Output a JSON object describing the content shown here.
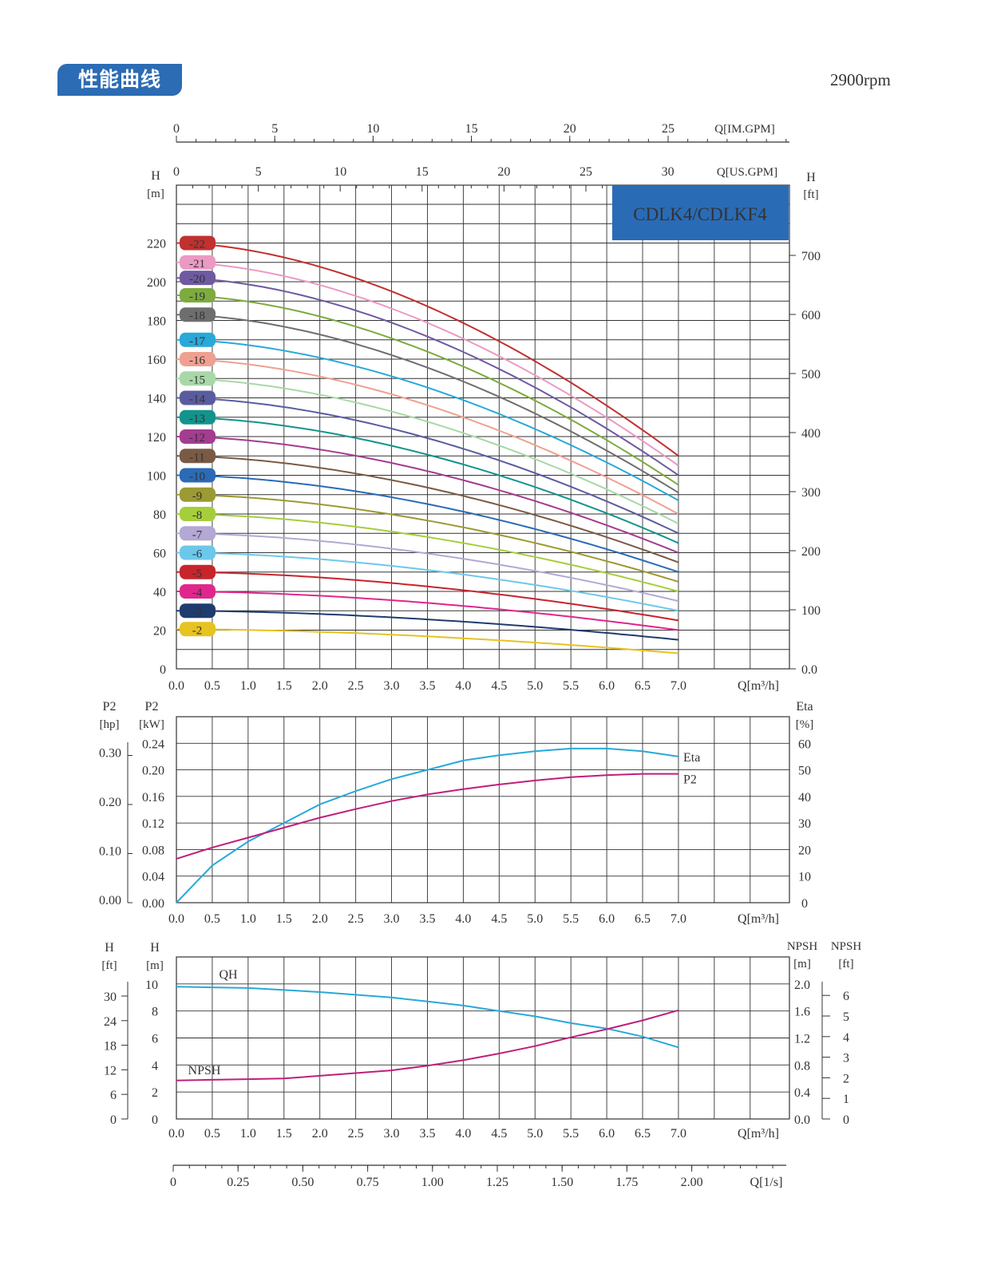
{
  "header": {
    "title": "性能曲线",
    "rpm": "2900rpm"
  },
  "model_box": {
    "label": "CDLK4/CDLKF4",
    "color": "#2a6bb6"
  },
  "colors": {
    "22": "#c23030",
    "21": "#eb9ac3",
    "20": "#6e5aa0",
    "19": "#7dab3e",
    "18": "#6e6e6e",
    "17": "#28a9d9",
    "16": "#f0a090",
    "15": "#a8d8a8",
    "14": "#5a5ca0",
    "13": "#12948c",
    "12": "#a43c90",
    "11": "#7a5a44",
    "10": "#2a6bb6",
    "9": "#9c9a32",
    "8": "#a6ce3a",
    "7": "#b4a8d4",
    "6": "#6cc8ea",
    "5": "#c8242c",
    "4": "#e0268c",
    "3": "#1e3c6e",
    "2": "#e6c320",
    "eta": "#28a9d9",
    "p2": "#c01f7a",
    "qh": "#28a9d9",
    "npsh": "#c01f7a"
  },
  "chart_data": [
    {
      "type": "line",
      "name": "QH curves",
      "top_axis_imgpm": {
        "label": "Q[IM.GPM]",
        "ticks": [
          "0",
          "5",
          "10",
          "15",
          "20",
          "25"
        ]
      },
      "top_axis_usgpm": {
        "label": "Q[US.GPM]",
        "ticks": [
          "0",
          "5",
          "10",
          "15",
          "20",
          "25",
          "30"
        ]
      },
      "left_axis": {
        "label_top": "H",
        "label_unit": "[m]",
        "ticks": [
          "0",
          "20",
          "40",
          "60",
          "80",
          "100",
          "120",
          "140",
          "160",
          "180",
          "200",
          "220"
        ],
        "range": [
          0,
          240
        ]
      },
      "right_axis": {
        "label_top": "H",
        "label_unit": "[ft]",
        "ticks": [
          "0.0",
          "100",
          "200",
          "300",
          "400",
          "500",
          "600",
          "700"
        ]
      },
      "x_axis": {
        "label": "Q[m³/h]",
        "ticks": [
          "0.0",
          "0.5",
          "1.0",
          "1.5",
          "2.0",
          "2.5",
          "3.0",
          "3.5",
          "4.0",
          "4.5",
          "5.0",
          "5.5",
          "6.0",
          "6.5",
          "7.0"
        ],
        "range": [
          0,
          8.5
        ]
      },
      "series": [
        {
          "name": "-22",
          "key": "22",
          "h0": 220,
          "h7": 110
        },
        {
          "name": "-21",
          "key": "21",
          "h0": 210,
          "h7": 105
        },
        {
          "name": "-20",
          "key": "20",
          "h0": 202,
          "h7": 100
        },
        {
          "name": "-19",
          "key": "19",
          "h0": 193,
          "h7": 95
        },
        {
          "name": "-18",
          "key": "18",
          "h0": 183,
          "h7": 91
        },
        {
          "name": "-17",
          "key": "17",
          "h0": 170,
          "h7": 87
        },
        {
          "name": "-16",
          "key": "16",
          "h0": 160,
          "h7": 80
        },
        {
          "name": "-15",
          "key": "15",
          "h0": 150,
          "h7": 75
        },
        {
          "name": "-14",
          "key": "14",
          "h0": 140,
          "h7": 70
        },
        {
          "name": "-13",
          "key": "13",
          "h0": 130,
          "h7": 65
        },
        {
          "name": "-12",
          "key": "12",
          "h0": 120,
          "h7": 60
        },
        {
          "name": "-11",
          "key": "11",
          "h0": 110,
          "h7": 55
        },
        {
          "name": "-10",
          "key": "10",
          "h0": 100,
          "h7": 50
        },
        {
          "name": "-9",
          "key": "9",
          "h0": 90,
          "h7": 45
        },
        {
          "name": "-8",
          "key": "8",
          "h0": 80,
          "h7": 40
        },
        {
          "name": "-7",
          "key": "7",
          "h0": 70,
          "h7": 35
        },
        {
          "name": "-6",
          "key": "6",
          "h0": 60,
          "h7": 30
        },
        {
          "name": "-5",
          "key": "5",
          "h0": 50,
          "h7": 25
        },
        {
          "name": "-4",
          "key": "4",
          "h0": 40,
          "h7": 20
        },
        {
          "name": "-3",
          "key": "3",
          "h0": 30,
          "h7": 15
        },
        {
          "name": "-2",
          "key": "2",
          "h0": 20.5,
          "h7": 8
        }
      ]
    },
    {
      "type": "line",
      "name": "P2 / Eta",
      "left_axis_hp": {
        "label_top": "P2",
        "label_unit": "[hp]",
        "ticks": [
          "0.00",
          "0.10",
          "0.20",
          "0.30"
        ]
      },
      "left_axis_kw": {
        "label_top": "P2",
        "label_unit": "[kW]",
        "ticks": [
          "0.00",
          "0.04",
          "0.08",
          "0.12",
          "0.16",
          "0.20",
          "0.24"
        ],
        "range": [
          0,
          0.28
        ]
      },
      "right_axis": {
        "label_top": "Eta",
        "label_unit": "[%]",
        "ticks": [
          "0",
          "10",
          "20",
          "30",
          "40",
          "50",
          "60"
        ],
        "range": [
          0,
          70
        ]
      },
      "x_axis": {
        "label": "Q[m³/h]",
        "ticks": [
          "0.0",
          "0.5",
          "1.0",
          "1.5",
          "2.0",
          "2.5",
          "3.0",
          "3.5",
          "4.0",
          "4.5",
          "5.0",
          "5.5",
          "6.0",
          "6.5",
          "7.0"
        ]
      },
      "series": [
        {
          "name": "Eta",
          "key": "eta",
          "axis": "right",
          "x": [
            0,
            0.5,
            1.0,
            1.5,
            2.0,
            2.5,
            3.0,
            3.5,
            4.0,
            4.5,
            5.0,
            5.5,
            6.0,
            6.5,
            7.0
          ],
          "y": [
            0,
            14,
            23,
            30,
            37,
            42,
            46.5,
            50,
            53.5,
            55.5,
            57,
            58,
            58,
            57,
            55
          ]
        },
        {
          "name": "P2",
          "key": "p2",
          "axis": "left",
          "x": [
            0,
            0.5,
            1.0,
            1.5,
            2.0,
            2.5,
            3.0,
            3.5,
            4.0,
            4.5,
            5.0,
            5.5,
            6.0,
            6.5,
            7.0
          ],
          "y": [
            0.066,
            0.083,
            0.098,
            0.113,
            0.128,
            0.141,
            0.153,
            0.163,
            0.171,
            0.178,
            0.184,
            0.189,
            0.192,
            0.194,
            0.194
          ]
        }
      ]
    },
    {
      "type": "line",
      "name": "QH / NPSH",
      "left_axis_ft": {
        "label_top": "H",
        "label_unit": "[ft]",
        "ticks": [
          "0",
          "6",
          "12",
          "18",
          "24",
          "30"
        ]
      },
      "left_axis_m": {
        "label_top": "H",
        "label_unit": "[m]",
        "ticks": [
          "0",
          "2",
          "4",
          "6",
          "8",
          "10"
        ],
        "range": [
          0,
          12
        ]
      },
      "right_axis_m": {
        "label_top": "NPSH",
        "label_unit": "[m]",
        "ticks": [
          "0.0",
          "0.4",
          "0.8",
          "1.2",
          "1.6",
          "2.0"
        ],
        "range": [
          0,
          2.4
        ]
      },
      "right_axis_ft": {
        "label_top": "NPSH",
        "label_unit": "[ft]",
        "ticks": [
          "0",
          "1",
          "2",
          "3",
          "4",
          "5",
          "6"
        ]
      },
      "x_axis": {
        "label": "Q[m³/h]",
        "ticks": [
          "0.0",
          "0.5",
          "1.0",
          "1.5",
          "2.0",
          "2.5",
          "3.0",
          "3.5",
          "4.0",
          "4.5",
          "5.0",
          "5.5",
          "6.0",
          "6.5",
          "7.0"
        ]
      },
      "bottom_axis": {
        "label": "Q[1/s]",
        "ticks": [
          "0",
          "0.25",
          "0.50",
          "0.75",
          "1.00",
          "1.25",
          "1.50",
          "1.75",
          "2.00"
        ]
      },
      "series": [
        {
          "name": "QH",
          "key": "qh",
          "axis": "left",
          "x": [
            0,
            0.5,
            1.0,
            1.5,
            2.0,
            2.5,
            3.0,
            3.5,
            4.0,
            4.5,
            5.0,
            5.5,
            6.0,
            6.5,
            7.0
          ],
          "y": [
            9.8,
            9.75,
            9.7,
            9.55,
            9.4,
            9.2,
            9.0,
            8.7,
            8.4,
            8.0,
            7.6,
            7.1,
            6.7,
            6.1,
            5.3
          ]
        },
        {
          "name": "NPSH",
          "key": "npsh",
          "axis": "right",
          "x": [
            0,
            0.5,
            1.0,
            1.5,
            2.0,
            2.5,
            3.0,
            3.5,
            4.0,
            4.5,
            5.0,
            5.5,
            6.0,
            6.5,
            7.0
          ],
          "y": [
            0.57,
            0.58,
            0.59,
            0.6,
            0.64,
            0.68,
            0.72,
            0.79,
            0.87,
            0.97,
            1.08,
            1.21,
            1.33,
            1.46,
            1.61
          ]
        }
      ]
    }
  ]
}
